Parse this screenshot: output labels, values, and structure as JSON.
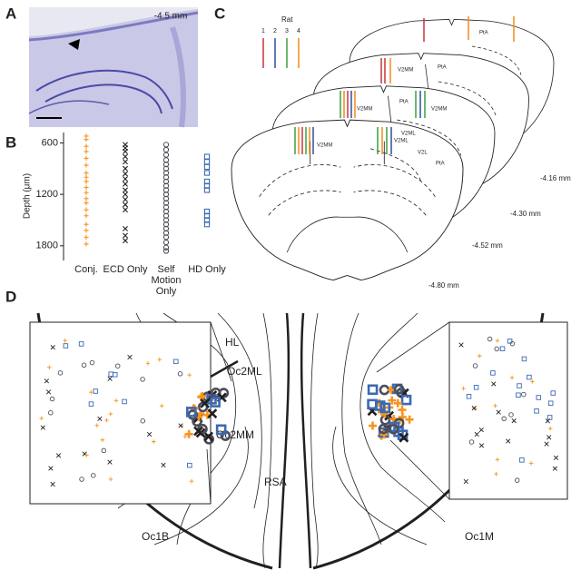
{
  "panels": [
    "A",
    "B",
    "C",
    "D"
  ],
  "panel_a": {
    "label": "-4.5 mm"
  },
  "chart_data": {
    "type": "scatter",
    "ylabel": "Depth (μm)",
    "ylim": [
      500,
      1950
    ],
    "y_inverted": true,
    "yticks": [
      600,
      1200,
      1800
    ],
    "series": [
      {
        "name": "Conj.",
        "color": "#f7941d",
        "marker": "plus",
        "values": [
          520,
          560,
          640,
          700,
          780,
          860,
          950,
          1000,
          1050,
          1120,
          1180,
          1250,
          1300,
          1380,
          1450,
          1550,
          1620,
          1700,
          1780
        ]
      },
      {
        "name": "ECD Only",
        "color": "#231f20",
        "marker": "x",
        "values": [
          620,
          660,
          700,
          760,
          820,
          900,
          960,
          1020,
          1080,
          1150,
          1200,
          1260,
          1320,
          1380,
          1600,
          1680,
          1740
        ]
      },
      {
        "name": "Self Motion Only",
        "color": "#4d4d5a",
        "marker": "circle",
        "values": [
          620,
          680,
          740,
          800,
          850,
          900,
          950,
          1000,
          1050,
          1100,
          1150,
          1200,
          1250,
          1300,
          1350,
          1400,
          1450,
          1500,
          1550,
          1600,
          1650,
          1700,
          1760,
          1820,
          1860
        ]
      },
      {
        "name": "HD Only",
        "color": "#3a6ab3",
        "marker": "square",
        "values": [
          760,
          820,
          880,
          950,
          1050,
          1100,
          1150,
          1400,
          1450,
          1500,
          1550
        ]
      }
    ]
  },
  "panel_c": {
    "legend_title": "Rat",
    "rats": [
      {
        "label": "1",
        "color": "#c8323c"
      },
      {
        "label": "2",
        "color": "#2b4fa0"
      },
      {
        "label": "3",
        "color": "#3aa040"
      },
      {
        "label": "4",
        "color": "#f08a1c"
      }
    ],
    "regions": [
      "PtA",
      "PtA",
      "PtA",
      "PtA",
      "V2MM",
      "V2MM",
      "V2MM",
      "V2MM",
      "V2ML",
      "V2ML",
      "V2L"
    ],
    "levels": [
      "-4.16 mm",
      "-4.30 mm",
      "-4.52 mm",
      "-4.80 mm"
    ]
  },
  "panel_d": {
    "labels": [
      "HL",
      "Oc2ML",
      "Oc2MM",
      "RSA",
      "Oc1B",
      "Oc1M"
    ]
  }
}
